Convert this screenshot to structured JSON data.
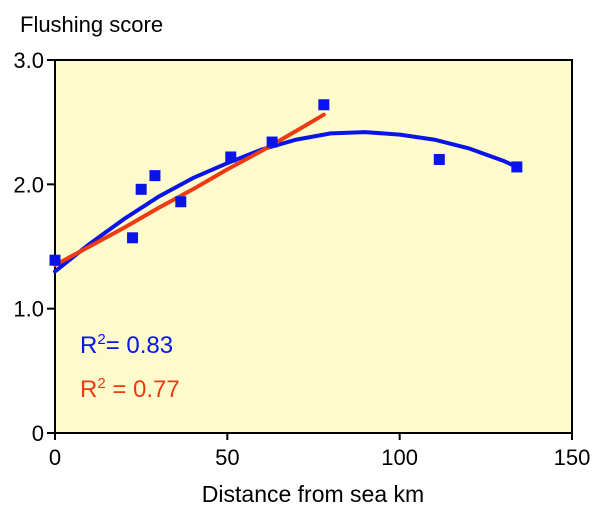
{
  "chart_data": {
    "type": "scatter",
    "title": "Flushing score",
    "xlabel": "Distance from sea km",
    "ylabel": "",
    "xlim": [
      0,
      150
    ],
    "ylim": [
      0,
      3.0
    ],
    "x_ticks": [
      "0",
      "50",
      "100",
      "150"
    ],
    "y_ticks": [
      "0",
      "1.0",
      "2.0",
      "3.0"
    ],
    "plot_background": "#FDFBCB",
    "points": {
      "color": "#0A14E6",
      "x": [
        0,
        22.5,
        25,
        29,
        36.5,
        51,
        63,
        78,
        111.5,
        134
      ],
      "y": [
        1.39,
        1.57,
        1.96,
        2.07,
        1.86,
        2.22,
        2.34,
        2.64,
        2.2,
        2.14
      ]
    },
    "series": [
      {
        "color": "#0A14E6",
        "x": [
          0,
          10,
          20,
          30,
          40,
          50,
          60,
          70,
          80,
          90,
          100,
          110,
          120,
          130,
          134
        ],
        "y": [
          1.3,
          1.52,
          1.72,
          1.9,
          2.05,
          2.17,
          2.28,
          2.36,
          2.41,
          2.42,
          2.4,
          2.36,
          2.29,
          2.19,
          2.14
        ]
      },
      {
        "color": "#EE3A12",
        "x": [
          0,
          10,
          20,
          30,
          40,
          50,
          60,
          70,
          78
        ],
        "y": [
          1.35,
          1.5,
          1.65,
          1.81,
          1.96,
          2.12,
          2.27,
          2.43,
          2.56
        ]
      }
    ],
    "annotations": [
      {
        "id": "r2-blue",
        "text_base": "R",
        "text_sup": "2",
        "text_rest": "= 0.83",
        "color": "#0A14E6"
      },
      {
        "id": "r2-red",
        "text_base": "R",
        "text_sup": "2",
        "text_rest": " = 0.77",
        "color": "#EE3A12"
      }
    ]
  }
}
